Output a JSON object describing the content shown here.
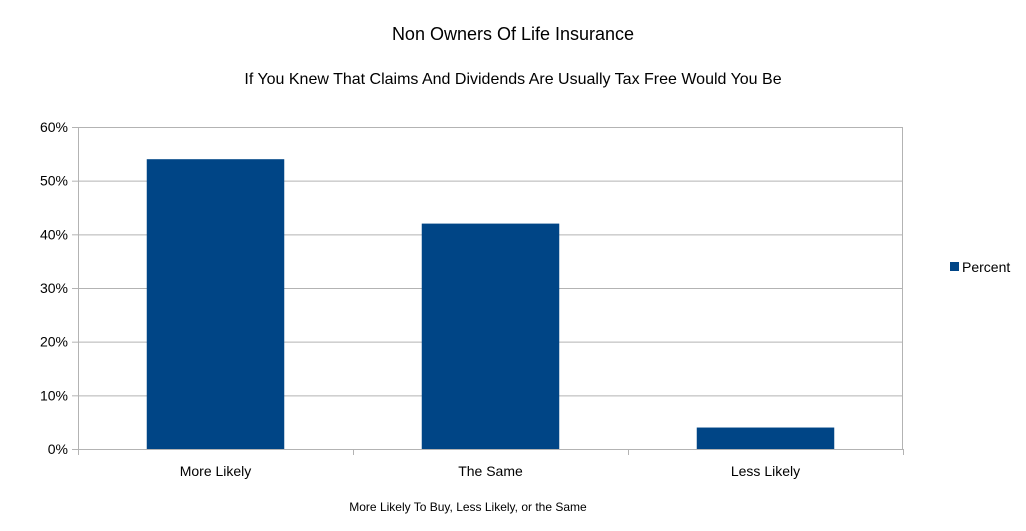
{
  "chart_data": {
    "type": "bar",
    "title": "Non Owners Of Life Insurance",
    "subtitle": "If You Knew That Claims And Dividends Are Usually Tax Free Would You Be",
    "xlabel": "More Likely To Buy, Less Likely, or the Same",
    "ylabel": "",
    "categories": [
      "More Likely",
      "The Same",
      "Less Likely"
    ],
    "series": [
      {
        "name": "Percent",
        "values": [
          54,
          42,
          4
        ],
        "color": "#004586"
      }
    ],
    "ylim": [
      0,
      60
    ],
    "yticks": [
      0,
      10,
      20,
      30,
      40,
      50,
      60
    ],
    "ytick_labels": [
      "0%",
      "10%",
      "20%",
      "30%",
      "40%",
      "50%",
      "60%"
    ],
    "grid": true,
    "legend_position": "right"
  }
}
